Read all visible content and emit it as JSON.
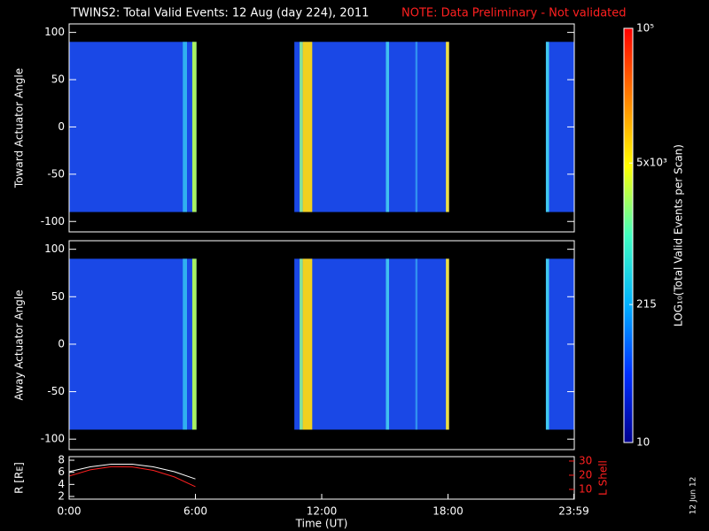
{
  "title": "TWINS2: Total Valid Events: 12 Aug (day 224), 2011",
  "note": "NOTE: Data Preliminary - Not validated",
  "note_color": "#ff2020",
  "stamp": "12 Jun 12",
  "colorbar": {
    "label": "LOG₁₀(Total Valid Events per Scan)",
    "clim": [
      10,
      100000
    ],
    "log": true,
    "ticks": [
      {
        "value": 100000,
        "label": "10⁵"
      },
      {
        "value": 5000,
        "label": "5x10³"
      },
      215,
      10
    ],
    "colors": [
      "#000090",
      "#0030ff",
      "#00b0ff",
      "#40ffc0",
      "#ffff00",
      "#ff8000",
      "#ff0000"
    ]
  },
  "chart_data": [
    {
      "type": "heatmap",
      "ylabel": "Toward Actuator Angle",
      "xlim": [
        0,
        24
      ],
      "ylim": [
        -111,
        109
      ],
      "yticks": [
        -100,
        -50,
        0,
        50,
        100
      ],
      "angle_range": [
        -90,
        90
      ],
      "segments": [
        {
          "start": 0,
          "end": 6.05,
          "color": "#1a48e6"
        },
        {
          "start": 10.7,
          "end": 18.05,
          "color": "#1a48e6"
        },
        {
          "start": 22.65,
          "end": 24,
          "color": "#1a48e6"
        }
      ],
      "stripes": [
        {
          "start": 5.4,
          "end": 5.6,
          "color": "#30b0f0"
        },
        {
          "start": 5.85,
          "end": 6.05,
          "color": "#a8f060"
        },
        {
          "start": 10.95,
          "end": 11.1,
          "color": "#80e0a0"
        },
        {
          "start": 11.1,
          "end": 11.55,
          "color": "#f0d020"
        },
        {
          "start": 15.05,
          "end": 15.2,
          "color": "#40c0f0"
        },
        {
          "start": 16.45,
          "end": 16.55,
          "color": "#3090f0"
        },
        {
          "start": 17.9,
          "end": 18.05,
          "color": "#f0e040"
        },
        {
          "start": 22.65,
          "end": 22.8,
          "color": "#40c8f0"
        }
      ]
    },
    {
      "type": "heatmap",
      "ylabel": "Away Actuator Angle",
      "xlim": [
        0,
        24
      ],
      "ylim": [
        -111,
        109
      ],
      "yticks": [
        -100,
        -50,
        0,
        50,
        100
      ],
      "angle_range": [
        -90,
        90
      ],
      "segments": [
        {
          "start": 0,
          "end": 6.05,
          "color": "#1a48e6"
        },
        {
          "start": 10.7,
          "end": 18.05,
          "color": "#1a48e6"
        },
        {
          "start": 22.65,
          "end": 24,
          "color": "#1a48e6"
        }
      ],
      "stripes": [
        {
          "start": 5.4,
          "end": 5.6,
          "color": "#30b0f0"
        },
        {
          "start": 5.85,
          "end": 6.05,
          "color": "#a8f060"
        },
        {
          "start": 10.95,
          "end": 11.1,
          "color": "#80e0a0"
        },
        {
          "start": 11.1,
          "end": 11.55,
          "color": "#f0d020"
        },
        {
          "start": 15.05,
          "end": 15.2,
          "color": "#40c0f0"
        },
        {
          "start": 16.45,
          "end": 16.55,
          "color": "#3090f0"
        },
        {
          "start": 17.9,
          "end": 18.05,
          "color": "#f0e040"
        },
        {
          "start": 22.65,
          "end": 22.8,
          "color": "#40c8f0"
        }
      ]
    },
    {
      "type": "line",
      "ylabel": "R [Rᴇ]",
      "y2label": "L Shell",
      "y2color": "#ff2020",
      "xlabel": "Time (UT)",
      "xlim": [
        0,
        24
      ],
      "xticks": [
        {
          "value": 0,
          "label": "0:00"
        },
        {
          "value": 6,
          "label": "6:00"
        },
        {
          "value": 12,
          "label": "12:00"
        },
        {
          "value": 18,
          "label": "18:00"
        },
        {
          "value": 23.98,
          "label": "23:59"
        }
      ],
      "ylim": [
        1.56,
        8.59
      ],
      "yticks": [
        2,
        4,
        6,
        8
      ],
      "y2lim": [
        3.1,
        33.1
      ],
      "y2ticks": [
        10,
        20,
        30
      ],
      "x": [
        0,
        1,
        2,
        3,
        4,
        5,
        6
      ],
      "series": [
        {
          "color": "#ffffff",
          "values": [
            6.1,
            6.9,
            7.35,
            7.35,
            6.9,
            6.1,
            4.9
          ]
        },
        {
          "color": "#ff2020",
          "axis": "y2",
          "values": [
            19.4,
            23.8,
            26.0,
            25.8,
            23.4,
            18.8,
            11.9
          ]
        }
      ]
    }
  ]
}
